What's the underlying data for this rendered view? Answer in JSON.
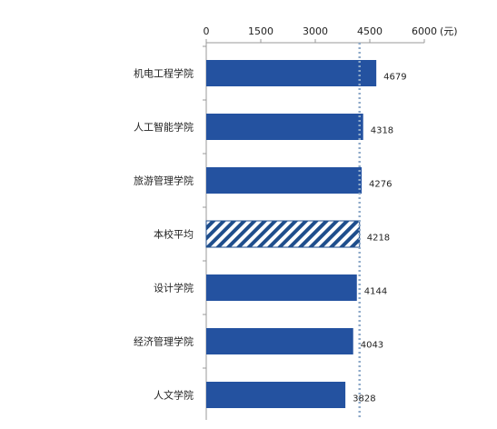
{
  "chart_data": {
    "type": "bar",
    "orientation": "horizontal",
    "categories": [
      "机电工程学院",
      "人工智能学院",
      "旅游管理学院",
      "本校平均",
      "设计学院",
      "经济管理学院",
      "人文学院"
    ],
    "values": [
      4679,
      4318,
      4276,
      4218,
      4144,
      4043,
      3828
    ],
    "value_labels": [
      "4679",
      "4318",
      "4276",
      "4218",
      "4144",
      "4043",
      "3828"
    ],
    "highlight_category": "本校平均",
    "reference_line": {
      "value": 4218,
      "style": "dotted"
    },
    "xticks": [
      "0",
      "1500",
      "3000",
      "4500",
      "6000"
    ],
    "xtick_values": [
      0,
      1500,
      3000,
      4500,
      6000
    ],
    "unit_label": "(元)",
    "xlim": [
      0,
      6000
    ],
    "axis_position": "top",
    "grid": false,
    "legend": "none",
    "colors": {
      "bar": "#2452A0",
      "highlight_hatch": "#1F4E8C",
      "reference_line": "#8EA9C8",
      "axis": "#999999"
    }
  }
}
